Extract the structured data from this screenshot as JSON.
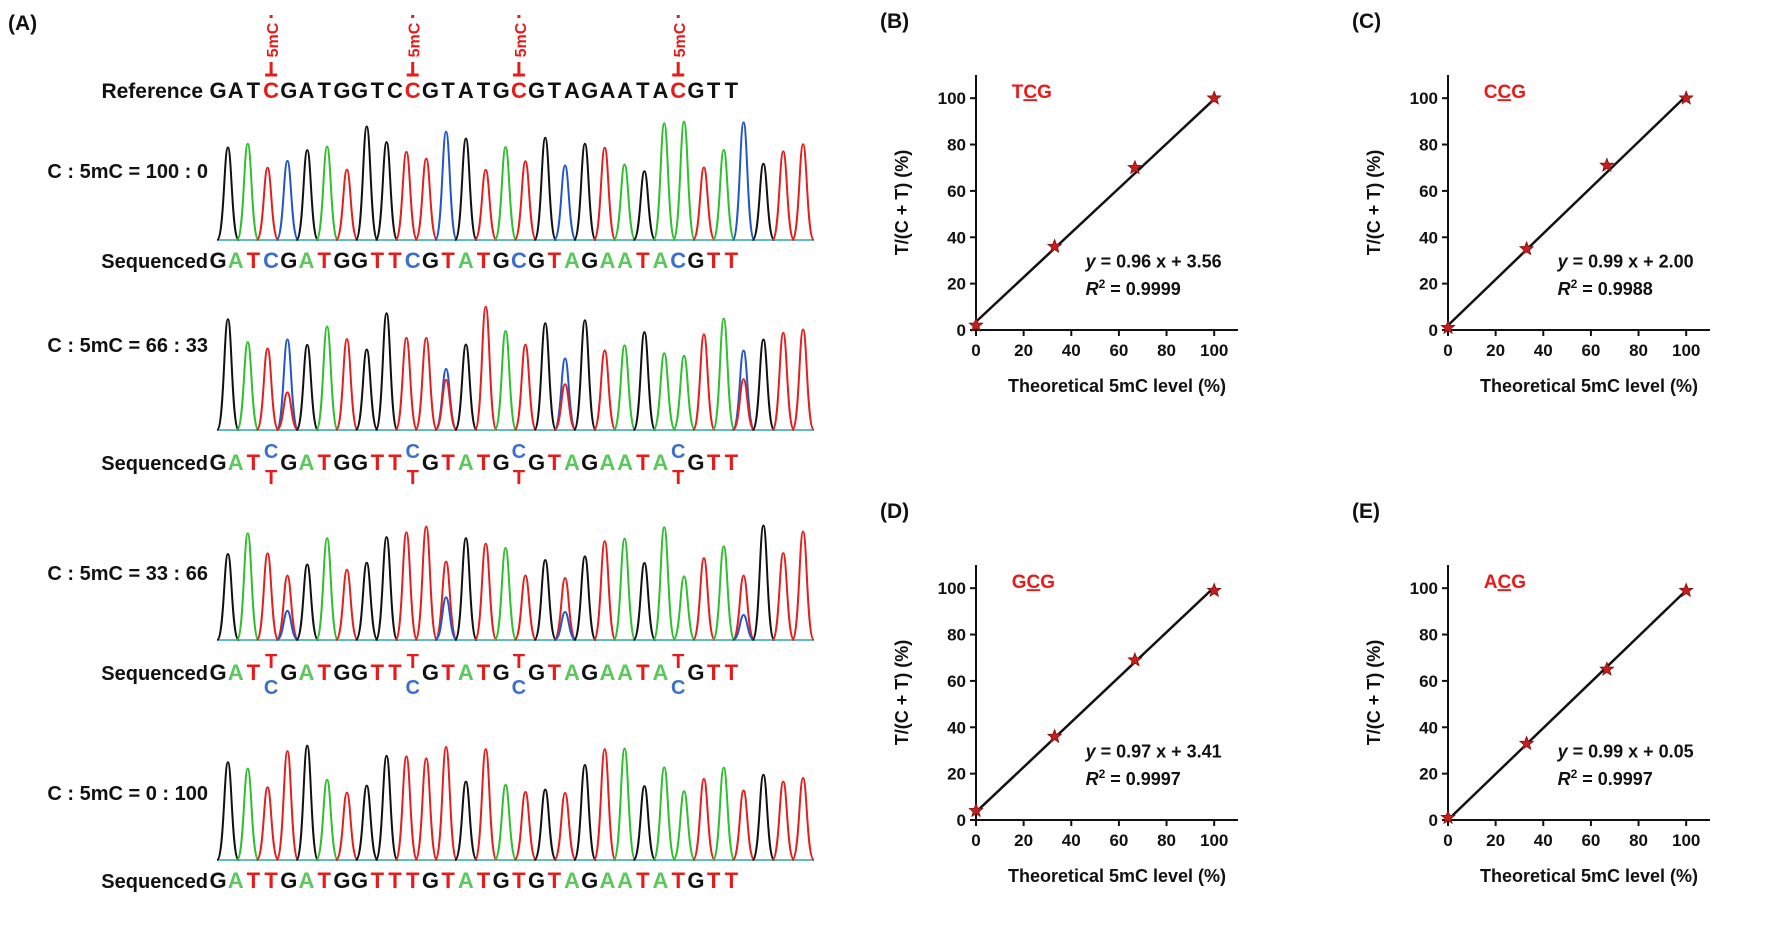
{
  "panel_a": {
    "label": "(A)",
    "reference_label": "Reference",
    "methyl_mark": "5mC",
    "reference_sequence": "GATCGATGGTCCGTATGCGTAGAATACGTT",
    "highlight_positions": [
      3,
      11,
      17,
      26
    ],
    "base_colors": {
      "A": "#5ac85a",
      "C": "#3a6fd0",
      "G": "#111111",
      "T": "#e81a1a"
    },
    "trace_colors": {
      "A": "#2fbf2f",
      "C": "#2456c8",
      "G": "#111111",
      "T": "#e32020"
    },
    "rows": [
      {
        "label": "C : 5mC = 100 : 0",
        "sequenced_label": "Sequenced",
        "sequence": "GATCGATGGTTCGTATGCGTAGAATACGTT",
        "mixed": false
      },
      {
        "label": "C : 5mC = 66 : 33",
        "sequenced_label": "Sequenced",
        "sequence": "GATCGATGGTTCGTATGCGTAGAATACGTT",
        "mixed": true,
        "top": "C",
        "bottom": "T"
      },
      {
        "label": "C : 5mC = 33 : 66",
        "sequenced_label": "Sequenced",
        "sequence": "GATTGATGGTTTGTATGTGTAGAATATGTT",
        "mixed": true,
        "top": "T",
        "bottom": "C"
      },
      {
        "label": "C : 5mC  = 0 : 100",
        "sequenced_label": "Sequenced",
        "sequence": "GATTGATGGTTTGTATGTGTAGAATATGTT",
        "mixed": false
      }
    ]
  },
  "chart_data": [
    {
      "panel": "(B)",
      "type": "scatter",
      "annotation": "TCG",
      "points": [
        [
          0,
          2
        ],
        [
          33,
          36
        ],
        [
          66.7,
          70
        ],
        [
          100,
          100
        ]
      ],
      "fit": {
        "slope": 0.96,
        "intercept": 3.56
      },
      "equation": "= 0.96 x + 3.56",
      "r2": "= 0.9999",
      "xlabel": "Theoretical 5mC level (%)",
      "ylabel": "T/(C + T) (%)",
      "xlim": [
        0,
        110
      ],
      "ylim": [
        0,
        110
      ],
      "xticks": [
        0,
        20,
        40,
        60,
        80,
        100
      ],
      "yticks": [
        0,
        20,
        40,
        60,
        80,
        100
      ]
    },
    {
      "panel": "(C)",
      "type": "scatter",
      "annotation": "CCG",
      "points": [
        [
          0,
          1
        ],
        [
          33,
          35
        ],
        [
          66.7,
          71
        ],
        [
          100,
          100
        ]
      ],
      "fit": {
        "slope": 0.99,
        "intercept": 2.0
      },
      "equation": "= 0.99 x + 2.00",
      "r2": "= 0.9988",
      "xlabel": "Theoretical 5mC level (%)",
      "ylabel": "T/(C + T) (%)",
      "xlim": [
        0,
        110
      ],
      "ylim": [
        0,
        110
      ],
      "xticks": [
        0,
        20,
        40,
        60,
        80,
        100
      ],
      "yticks": [
        0,
        20,
        40,
        60,
        80,
        100
      ]
    },
    {
      "panel": "(D)",
      "type": "scatter",
      "annotation": "GCG",
      "points": [
        [
          0,
          4
        ],
        [
          33,
          36
        ],
        [
          66.7,
          69
        ],
        [
          100,
          99
        ]
      ],
      "fit": {
        "slope": 0.97,
        "intercept": 3.41
      },
      "equation": "= 0.97 x + 3.41",
      "r2": "= 0.9997",
      "xlabel": "Theoretical 5mC level (%)",
      "ylabel": "T/(C + T) (%)",
      "xlim": [
        0,
        110
      ],
      "ylim": [
        0,
        110
      ],
      "xticks": [
        0,
        20,
        40,
        60,
        80,
        100
      ],
      "yticks": [
        0,
        20,
        40,
        60,
        80,
        100
      ]
    },
    {
      "panel": "(E)",
      "type": "scatter",
      "annotation": "ACG",
      "points": [
        [
          0,
          1
        ],
        [
          33,
          33
        ],
        [
          66.7,
          65
        ],
        [
          100,
          99
        ]
      ],
      "fit": {
        "slope": 0.99,
        "intercept": 0.05
      },
      "equation": "= 0.99 x + 0.05",
      "r2": "= 0.9997",
      "xlabel": "Theoretical 5mC level (%)",
      "ylabel": "T/(C + T) (%)",
      "xlim": [
        0,
        110
      ],
      "ylim": [
        0,
        110
      ],
      "xticks": [
        0,
        20,
        40,
        60,
        80,
        100
      ],
      "yticks": [
        0,
        20,
        40,
        60,
        80,
        100
      ]
    }
  ]
}
